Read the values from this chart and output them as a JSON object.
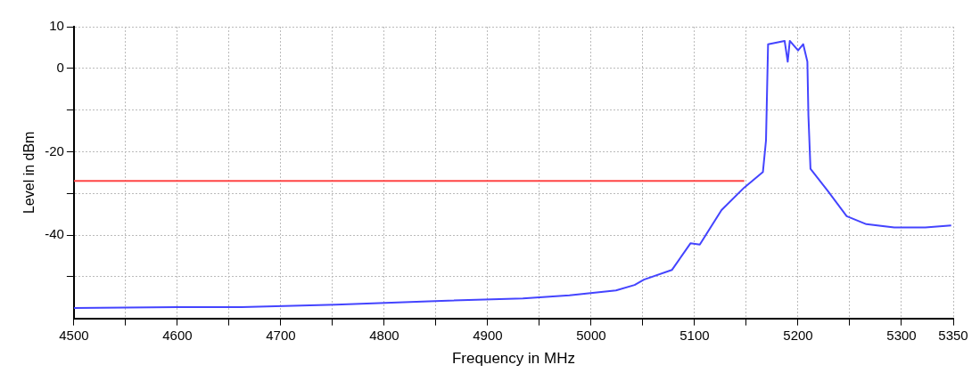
{
  "chart_data": {
    "type": "line",
    "xlabel": "Frequency in MHz",
    "ylabel": "Level in dBm",
    "xlim": [
      4500,
      5350
    ],
    "xticks": [
      4500,
      {
        "value": 4550,
        "label": null
      },
      4600,
      {
        "value": 4650,
        "label": null
      },
      4700,
      {
        "value": 4750,
        "label": null
      },
      4800,
      {
        "value": 4850,
        "label": null
      },
      4900,
      {
        "value": 4950,
        "label": null
      },
      5000,
      {
        "value": 5050,
        "label": null
      },
      5100,
      {
        "value": 5150,
        "label": null
      },
      5200,
      {
        "value": 5250,
        "label": null
      },
      5300,
      5350
    ],
    "ylim": [
      -60,
      10
    ],
    "yticks": [
      10,
      0,
      {
        "value": -10,
        "label": null
      },
      -20,
      {
        "value": -30,
        "label": null
      },
      -40,
      {
        "value": -50,
        "label": null
      }
    ],
    "grid": true,
    "legend": false,
    "marker": "none",
    "line_style": "solid",
    "series": [
      {
        "color": "#4444ff",
        "x": [
          4500,
          4600,
          4662,
          4753,
          4843,
          4934,
          4979,
          5024,
          5042,
          5051,
          5078,
          5096,
          5105,
          5126,
          5148,
          5166,
          5169,
          5171,
          5187,
          5190,
          5192,
          5200,
          5205,
          5209,
          5210,
          5212,
          5229,
          5247,
          5266,
          5293,
          5323,
          5348
        ],
        "values": [
          -57.5,
          -57.3,
          -57.3,
          -56.7,
          -55.9,
          -55.2,
          -54.5,
          -53.3,
          -52,
          -50.7,
          -48.4,
          -42,
          -42.3,
          -34,
          -28.6,
          -24.9,
          -17.3,
          5.8,
          6.6,
          1.6,
          6.6,
          4.3,
          5.8,
          1.6,
          -11.3,
          -24.1,
          -29.5,
          -35.5,
          -37.4,
          -38.2,
          -38.2,
          -37.7
        ]
      },
      {
        "color": "#ff4444",
        "x": [
          4500,
          5148
        ],
        "values": [
          -27,
          -27
        ]
      }
    ]
  }
}
